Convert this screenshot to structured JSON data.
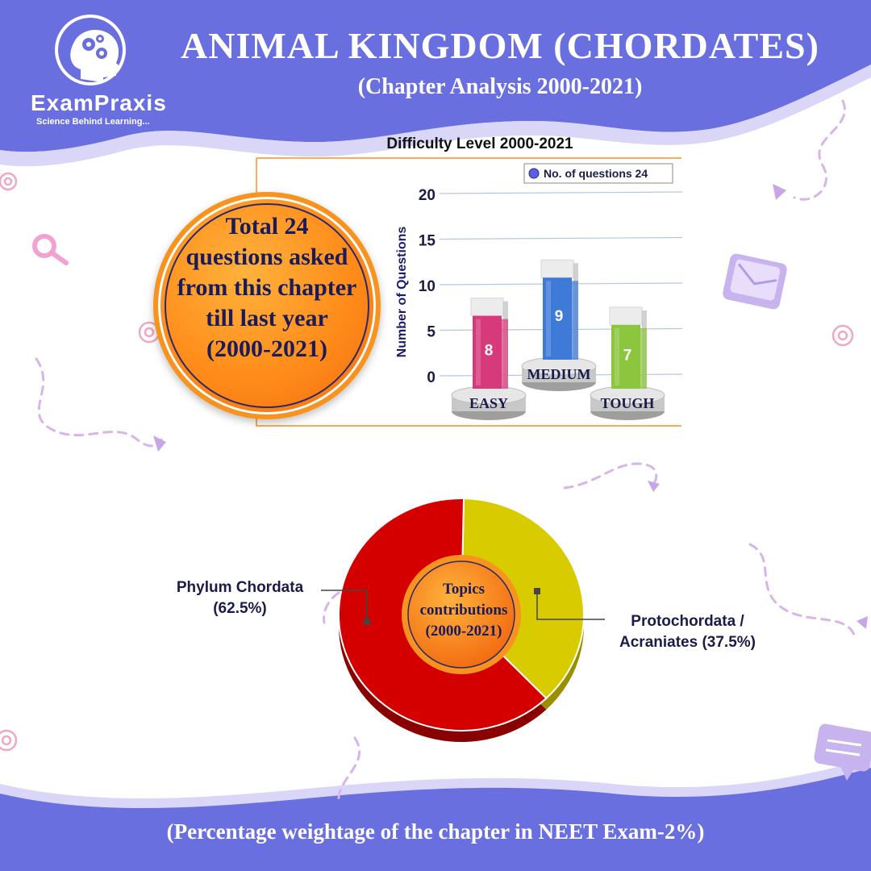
{
  "header": {
    "title": "ANIMAL KINGDOM (CHORDATES)",
    "subtitle": "(Chapter Analysis 2000-2021)"
  },
  "brand": {
    "name": "ExamPraxis",
    "tagline": "Science Behind Learning..."
  },
  "summary": {
    "lines": [
      "Total 24",
      "questions asked",
      "from this chapter",
      "till last year",
      "(2000-2021)"
    ]
  },
  "colors": {
    "banner": "#6a6fe0",
    "accent_orange": "#f7931e",
    "easy": "#d63a7a",
    "medium": "#3f7ad9",
    "tough": "#8cc63f",
    "chordata": "#d40000",
    "protochordata": "#d8cc00"
  },
  "chart_data": [
    {
      "type": "bar",
      "title": "Difficulty Level 2000-2021",
      "ylabel": "Number of Questions",
      "xlabel": "",
      "categories": [
        "EASY",
        "MEDIUM",
        "TOUGH"
      ],
      "series": [
        {
          "name": "No. of questions 24",
          "values": [
            8,
            9,
            7
          ]
        }
      ],
      "yticks": [
        0,
        5,
        10,
        15,
        20
      ],
      "ylim": [
        0,
        20
      ],
      "grid": true,
      "legend": "top-right"
    },
    {
      "type": "pie",
      "center_label": [
        "Topics",
        "contributions",
        "(2000-2021)"
      ],
      "slices": [
        {
          "label": "Phylum Chordata",
          "label_lines": [
            "Phylum Chordata",
            "(62.5%)"
          ],
          "value": 62.5,
          "color": "#d40000"
        },
        {
          "label": "Protochordata / Acraniates",
          "label_lines": [
            "Protochordata /",
            "Acraniates (37.5%)"
          ],
          "value": 37.5,
          "color": "#d8cc00"
        }
      ]
    }
  ],
  "footer": {
    "text": "(Percentage weightage of the chapter in NEET Exam-2%)"
  }
}
